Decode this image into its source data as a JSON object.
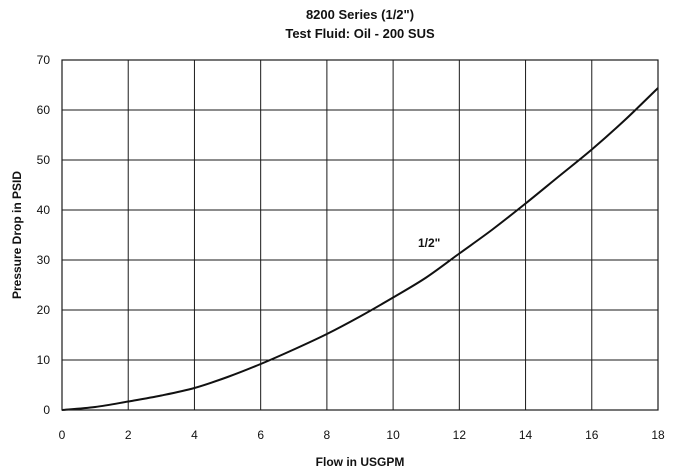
{
  "chart_data": {
    "type": "line",
    "title": "8200 Series (1/2\")",
    "subtitle": "Test Fluid: Oil - 200 SUS",
    "xlabel": "Flow in USGPM",
    "ylabel": "Pressure Drop in PSID",
    "xlim": [
      0,
      18
    ],
    "ylim": [
      0,
      70
    ],
    "x_ticks": [
      "0",
      "2",
      "4",
      "6",
      "8",
      "10",
      "12",
      "14",
      "16",
      "18"
    ],
    "y_ticks": [
      "0",
      "10",
      "20",
      "30",
      "40",
      "50",
      "60",
      "70"
    ],
    "grid": true,
    "legend": "none",
    "series": [
      {
        "name": "1/2\"",
        "x": [
          0,
          1,
          2,
          3,
          4,
          5,
          6,
          7,
          8,
          9,
          10,
          11,
          12,
          13,
          14,
          15,
          16,
          17,
          18
        ],
        "y": [
          0,
          0.6,
          1.7,
          2.9,
          4.4,
          6.6,
          9.2,
          12.1,
          15.2,
          18.7,
          22.5,
          26.5,
          31.3,
          36.1,
          41.3,
          46.7,
          52.1,
          58.0,
          64.4
        ]
      }
    ]
  }
}
